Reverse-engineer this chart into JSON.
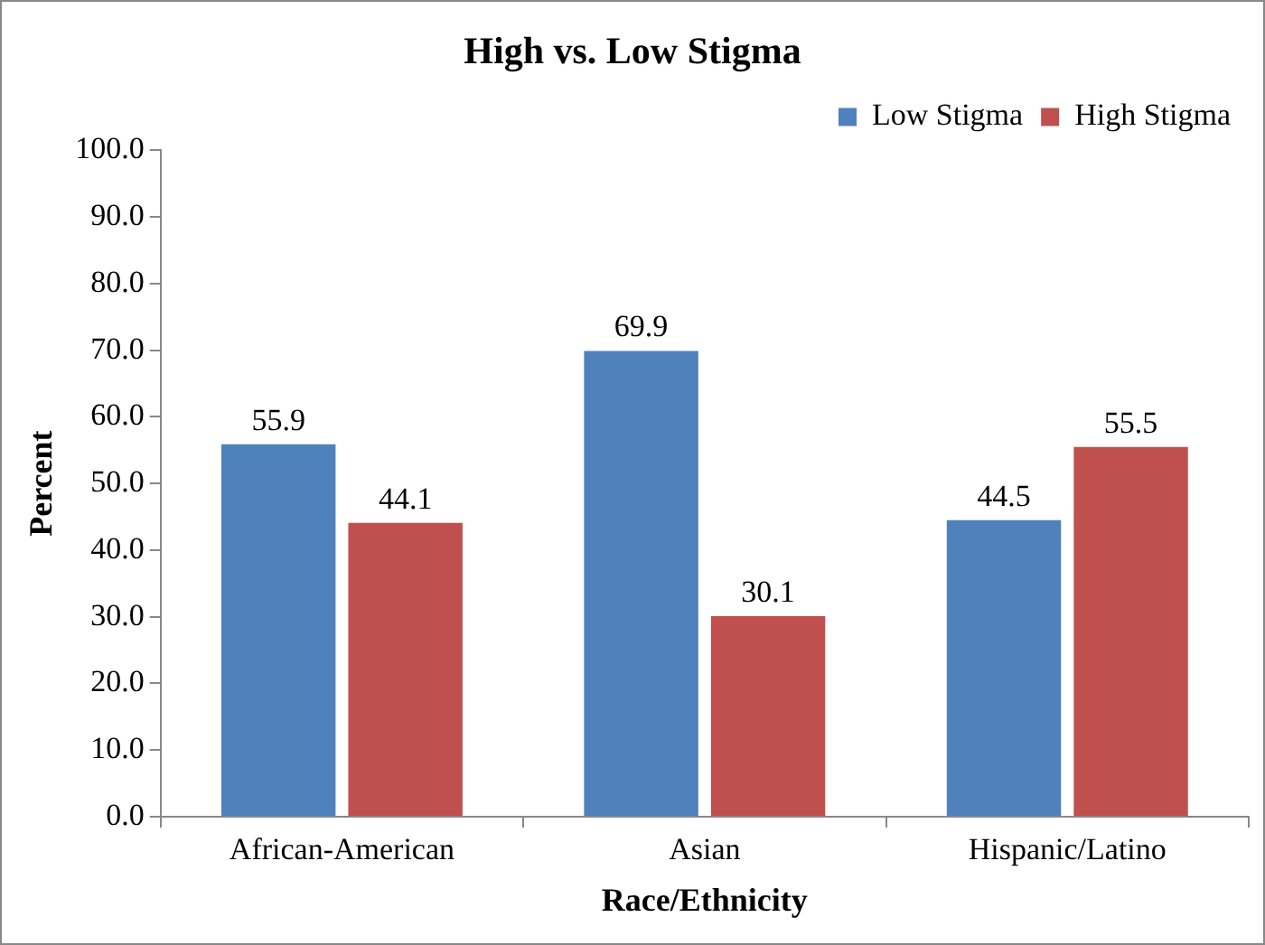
{
  "chart_data": {
    "type": "bar",
    "title": "High vs. Low Stigma",
    "xlabel": "Race/Ethnicity",
    "ylabel": "Percent",
    "categories": [
      "African-American",
      "Asian",
      "Hispanic/Latino"
    ],
    "series": [
      {
        "name": "Low Stigma",
        "color": "#4f81bd",
        "values": [
          55.9,
          69.9,
          44.5
        ]
      },
      {
        "name": "High Stigma",
        "color": "#c0504d",
        "values": [
          44.1,
          30.1,
          55.5
        ]
      }
    ],
    "ylim": [
      0,
      100
    ],
    "yticks": [
      {
        "value": 0,
        "label": "0.0"
      },
      {
        "value": 10,
        "label": "10.0"
      },
      {
        "value": 20,
        "label": "20.0"
      },
      {
        "value": 30,
        "label": "30.0"
      },
      {
        "value": 40,
        "label": "40.0"
      },
      {
        "value": 50,
        "label": "50.0"
      },
      {
        "value": 60,
        "label": "60.0"
      },
      {
        "value": 70,
        "label": "70.0"
      },
      {
        "value": 80,
        "label": "80.0"
      },
      {
        "value": 90,
        "label": "90.0"
      },
      {
        "value": 100,
        "label": "100.0"
      }
    ],
    "data_labels": true,
    "grid": false,
    "legend": "top right"
  }
}
